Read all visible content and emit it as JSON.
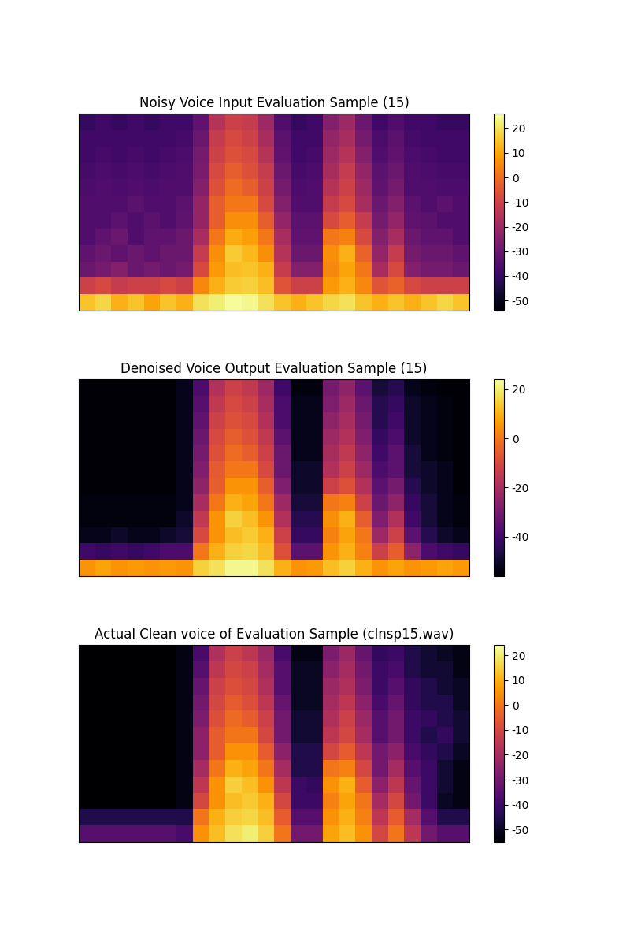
{
  "chart_data": [
    {
      "type": "heatmap",
      "title": "Noisy Voice Input Evaluation Sample (15)",
      "color": "inferno",
      "tick_labels": false,
      "colorbar": {
        "range": [
          -54,
          26
        ],
        "ticks": [
          -50,
          -40,
          -30,
          -20,
          -10,
          0,
          10,
          20
        ]
      },
      "cells": [
        [
          15,
          18,
          12,
          15,
          10,
          15,
          12,
          20,
          22,
          25,
          24,
          20,
          15,
          12,
          15,
          18,
          20,
          15,
          12,
          15,
          12,
          15,
          18,
          15
        ],
        [
          -10,
          -8,
          -12,
          -10,
          -10,
          -8,
          -10,
          5,
          12,
          16,
          17,
          14,
          -5,
          -10,
          -10,
          8,
          12,
          5,
          -5,
          -2,
          -8,
          -10,
          -10,
          -10
        ],
        [
          -30,
          -28,
          -25,
          -30,
          -28,
          -30,
          -28,
          -8,
          8,
          14,
          15,
          12,
          -12,
          -25,
          -25,
          5,
          10,
          2,
          -18,
          -8,
          -25,
          -28,
          -28,
          -30
        ],
        [
          -32,
          -30,
          -32,
          -30,
          -32,
          -30,
          -30,
          -12,
          6,
          16,
          13,
          6,
          -15,
          -30,
          -30,
          6,
          12,
          -2,
          -22,
          -12,
          -28,
          -30,
          -30,
          -32
        ],
        [
          -35,
          -32,
          -30,
          -35,
          -32,
          -32,
          -30,
          -18,
          2,
          11,
          9,
          2,
          -18,
          -32,
          -32,
          2,
          4,
          -8,
          -25,
          -18,
          -30,
          -32,
          -32,
          -35
        ],
        [
          -35,
          -35,
          -33,
          -35,
          -33,
          -35,
          -32,
          -22,
          -3,
          6,
          6,
          -3,
          -22,
          -33,
          -33,
          -8,
          -3,
          -12,
          -28,
          -22,
          -32,
          -33,
          -35,
          -35
        ],
        [
          -35,
          -35,
          -35,
          -33,
          -35,
          -35,
          -33,
          -22,
          -3,
          2,
          2,
          -8,
          -25,
          -35,
          -35,
          -12,
          -8,
          -18,
          -30,
          -25,
          -33,
          -35,
          -33,
          -35
        ],
        [
          -36,
          -35,
          -36,
          -35,
          -36,
          -35,
          -35,
          -25,
          -6,
          0,
          -3,
          -10,
          -28,
          -36,
          -35,
          -15,
          -10,
          -20,
          -32,
          -28,
          -35,
          -35,
          -36,
          -36
        ],
        [
          -37,
          -36,
          -37,
          -36,
          -37,
          -36,
          -35,
          -27,
          -8,
          -3,
          -6,
          -12,
          -30,
          -37,
          -36,
          -18,
          -12,
          -22,
          -33,
          -30,
          -35,
          -36,
          -37,
          -37
        ],
        [
          -38,
          -37,
          -38,
          -37,
          -38,
          -37,
          -36,
          -28,
          -10,
          -6,
          -8,
          -15,
          -32,
          -38,
          -37,
          -20,
          -15,
          -25,
          -35,
          -32,
          -36,
          -37,
          -38,
          -38
        ],
        [
          -38,
          -38,
          -38,
          -38,
          -38,
          -38,
          -37,
          -30,
          -12,
          -8,
          -10,
          -18,
          -33,
          -38,
          -38,
          -22,
          -18,
          -28,
          -36,
          -33,
          -37,
          -38,
          -38,
          -38
        ],
        [
          -40,
          -38,
          -40,
          -38,
          -40,
          -38,
          -38,
          -32,
          -15,
          -10,
          -12,
          -20,
          -35,
          -40,
          -38,
          -25,
          -20,
          -30,
          -38,
          -35,
          -38,
          -38,
          -40,
          -40
        ]
      ]
    },
    {
      "type": "heatmap",
      "title": "Denoised Voice Output Evaluation Sample (15)",
      "color": "inferno",
      "tick_labels": false,
      "colorbar": {
        "range": [
          -56,
          24
        ],
        "ticks": [
          -40,
          -20,
          0,
          20
        ]
      },
      "cells": [
        [
          5,
          8,
          5,
          6,
          5,
          6,
          5,
          15,
          18,
          22,
          22,
          18,
          10,
          5,
          6,
          12,
          15,
          10,
          5,
          8,
          5,
          6,
          8,
          6
        ],
        [
          -40,
          -42,
          -40,
          -42,
          -40,
          -38,
          -38,
          0,
          10,
          15,
          16,
          12,
          -8,
          -35,
          -35,
          5,
          10,
          2,
          -12,
          -5,
          -25,
          -38,
          -40,
          -42
        ],
        [
          -52,
          -52,
          -50,
          -52,
          -52,
          -50,
          -48,
          -10,
          5,
          12,
          14,
          10,
          -12,
          -42,
          -42,
          2,
          8,
          0,
          -22,
          -12,
          -35,
          -45,
          -50,
          -52
        ],
        [
          -54,
          -54,
          -54,
          -54,
          -54,
          -54,
          -50,
          -15,
          5,
          15,
          12,
          5,
          -18,
          -45,
          -45,
          4,
          10,
          -5,
          -28,
          -18,
          -40,
          -48,
          -52,
          -54
        ],
        [
          -54,
          -54,
          -54,
          -54,
          -54,
          -54,
          -52,
          -20,
          0,
          10,
          8,
          0,
          -22,
          -48,
          -48,
          0,
          2,
          -12,
          -32,
          -25,
          -42,
          -48,
          -52,
          -54
        ],
        [
          -55,
          -55,
          -55,
          -55,
          -55,
          -55,
          -52,
          -25,
          -5,
          5,
          5,
          -5,
          -28,
          -50,
          -50,
          -12,
          -8,
          -18,
          -35,
          -30,
          -45,
          -50,
          -52,
          -55
        ],
        [
          -55,
          -55,
          -55,
          -55,
          -55,
          -55,
          -52,
          -28,
          -6,
          0,
          0,
          -10,
          -32,
          -50,
          -50,
          -18,
          -12,
          -22,
          -38,
          -35,
          -48,
          -50,
          -52,
          -55
        ],
        [
          -55,
          -55,
          -55,
          -55,
          -55,
          -55,
          -52,
          -30,
          -8,
          -2,
          -5,
          -12,
          -32,
          -52,
          -52,
          -20,
          -15,
          -25,
          -40,
          -35,
          -48,
          -52,
          -54,
          -55
        ],
        [
          -55,
          -55,
          -55,
          -55,
          -55,
          -55,
          -52,
          -32,
          -10,
          -5,
          -8,
          -15,
          -35,
          -52,
          -52,
          -22,
          -18,
          -28,
          -42,
          -38,
          -50,
          -52,
          -54,
          -55
        ],
        [
          -55,
          -55,
          -55,
          -55,
          -55,
          -55,
          -52,
          -34,
          -12,
          -8,
          -10,
          -18,
          -38,
          -52,
          -52,
          -25,
          -20,
          -30,
          -45,
          -40,
          -50,
          -52,
          -54,
          -55
        ],
        [
          -55,
          -55,
          -55,
          -55,
          -55,
          -55,
          -52,
          -36,
          -15,
          -10,
          -12,
          -20,
          -38,
          -52,
          -52,
          -28,
          -22,
          -32,
          -45,
          -42,
          -50,
          -52,
          -54,
          -55
        ],
        [
          -55,
          -55,
          -55,
          -55,
          -55,
          -55,
          -52,
          -38,
          -18,
          -12,
          -15,
          -22,
          -40,
          -54,
          -54,
          -30,
          -25,
          -35,
          -48,
          -45,
          -52,
          -54,
          -55,
          -55
        ]
      ]
    },
    {
      "type": "heatmap",
      "title": "Actual Clean voice of Evaluation Sample (clnsp15.wav)",
      "color": "inferno",
      "tick_labels": false,
      "colorbar": {
        "range": [
          -55,
          24
        ],
        "ticks": [
          -50,
          -40,
          -30,
          -20,
          -10,
          0,
          10,
          20
        ]
      },
      "cells": [
        [
          -35,
          -35,
          -35,
          -35,
          -35,
          -35,
          -38,
          5,
          12,
          18,
          20,
          15,
          0,
          -30,
          -30,
          8,
          12,
          5,
          -10,
          0,
          -15,
          -30,
          -35,
          -35
        ],
        [
          -45,
          -45,
          -45,
          -45,
          -45,
          -45,
          -45,
          0,
          10,
          15,
          16,
          12,
          -5,
          -35,
          -35,
          5,
          10,
          2,
          -15,
          -5,
          -20,
          -35,
          -45,
          -45
        ],
        [
          -55,
          -55,
          -55,
          -55,
          -55,
          -55,
          -52,
          -10,
          5,
          12,
          14,
          10,
          -10,
          -40,
          -40,
          2,
          8,
          0,
          -20,
          -10,
          -30,
          -40,
          -50,
          -52
        ],
        [
          -55,
          -55,
          -55,
          -55,
          -55,
          -55,
          -52,
          -15,
          5,
          15,
          12,
          5,
          -15,
          -40,
          -42,
          5,
          10,
          -5,
          -25,
          -15,
          -32,
          -40,
          -48,
          -52
        ],
        [
          -55,
          -55,
          -55,
          -55,
          -55,
          -55,
          -52,
          -20,
          0,
          10,
          8,
          0,
          -20,
          -45,
          -45,
          0,
          2,
          -10,
          -30,
          -20,
          -35,
          -40,
          -48,
          -52
        ],
        [
          -55,
          -55,
          -55,
          -55,
          -55,
          -55,
          -52,
          -25,
          -5,
          5,
          5,
          -5,
          -25,
          -45,
          -45,
          -10,
          -5,
          -15,
          -30,
          -25,
          -38,
          -42,
          -45,
          -50
        ],
        [
          -55,
          -55,
          -55,
          -55,
          -55,
          -55,
          -52,
          -25,
          -5,
          0,
          0,
          -10,
          -30,
          -48,
          -48,
          -15,
          -10,
          -20,
          -35,
          -30,
          -40,
          -45,
          -42,
          -48
        ],
        [
          -55,
          -55,
          -55,
          -55,
          -55,
          -55,
          -52,
          -28,
          -8,
          -2,
          -5,
          -12,
          -30,
          -48,
          -48,
          -18,
          -12,
          -22,
          -35,
          -30,
          -40,
          -42,
          -45,
          -48
        ],
        [
          -55,
          -55,
          -55,
          -55,
          -55,
          -55,
          -52,
          -30,
          -10,
          -5,
          -8,
          -15,
          -32,
          -50,
          -50,
          -20,
          -15,
          -25,
          -38,
          -32,
          -42,
          -45,
          -45,
          -50
        ],
        [
          -55,
          -55,
          -55,
          -55,
          -55,
          -55,
          -52,
          -32,
          -12,
          -8,
          -10,
          -18,
          -35,
          -50,
          -50,
          -22,
          -18,
          -28,
          -40,
          -35,
          -42,
          -45,
          -48,
          -50
        ],
        [
          -55,
          -55,
          -55,
          -55,
          -55,
          -55,
          -52,
          -35,
          -15,
          -10,
          -12,
          -20,
          -35,
          -50,
          -50,
          -25,
          -20,
          -30,
          -40,
          -38,
          -45,
          -48,
          -48,
          -52
        ],
        [
          -55,
          -55,
          -55,
          -55,
          -55,
          -55,
          -52,
          -38,
          -18,
          -12,
          -15,
          -22,
          -38,
          -52,
          -52,
          -28,
          -22,
          -32,
          -42,
          -40,
          -45,
          -48,
          -50,
          -52
        ]
      ]
    }
  ]
}
